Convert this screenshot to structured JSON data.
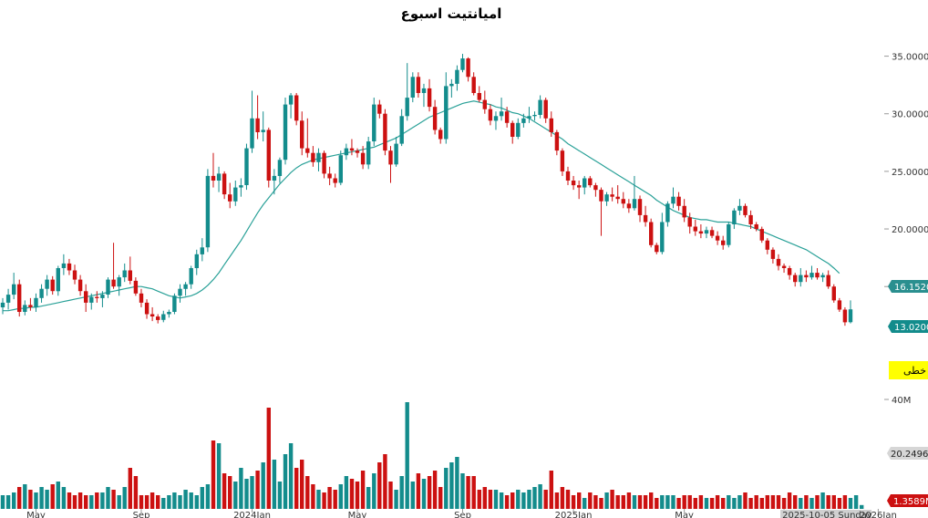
{
  "chart_data": {
    "type": "candlestick",
    "title": "امیانتیت اسبوع",
    "colors": {
      "up": "#138c8c",
      "down": "#cc1111",
      "ma": "#2aa198"
    },
    "price_axis": {
      "ylim": [
        9.0,
        37.5
      ],
      "ticks": [
        "15.0000",
        "20.0000",
        "25.0000",
        "30.0000",
        "35.0000"
      ]
    },
    "volume_axis": {
      "ylim": [
        0,
        46
      ],
      "ticks": [
        "40M"
      ]
    },
    "x_labels": [
      "May",
      "Sep",
      "2024Jan",
      "May",
      "Sep",
      "2025Jan",
      "May",
      "2025-10-05 Sunday",
      "2026Jan"
    ],
    "last_ma_label": "16.1520",
    "last_price_label": "13.0200",
    "vol_ma_label": "20.2496",
    "last_volume_label": "1.3589M",
    "indicator_label": "خطی",
    "candles": [
      [
        13.2,
        14.0,
        12.6,
        13.6
      ],
      [
        13.6,
        14.8,
        13.0,
        14.3
      ],
      [
        14.3,
        16.2,
        13.9,
        15.2
      ],
      [
        15.2,
        15.6,
        12.4,
        12.8
      ],
      [
        12.8,
        13.8,
        12.5,
        13.4
      ],
      [
        13.4,
        14.0,
        12.9,
        13.2
      ],
      [
        13.2,
        14.4,
        12.8,
        14.0
      ],
      [
        14.0,
        15.2,
        13.6,
        14.8
      ],
      [
        14.8,
        16.0,
        14.2,
        15.6
      ],
      [
        15.6,
        15.9,
        14.3,
        14.6
      ],
      [
        14.6,
        16.8,
        14.2,
        16.6
      ],
      [
        16.6,
        17.8,
        16.0,
        17.0
      ],
      [
        17.0,
        17.4,
        16.0,
        16.4
      ],
      [
        16.4,
        16.9,
        15.2,
        15.6
      ],
      [
        15.6,
        16.0,
        14.2,
        14.6
      ],
      [
        14.6,
        15.2,
        12.8,
        13.6
      ],
      [
        13.6,
        14.4,
        13.0,
        14.1
      ],
      [
        14.1,
        14.6,
        13.6,
        14.0
      ],
      [
        14.0,
        14.6,
        13.2,
        14.3
      ],
      [
        14.3,
        15.8,
        14.0,
        15.6
      ],
      [
        15.6,
        18.8,
        14.8,
        15.0
      ],
      [
        15.0,
        16.0,
        14.2,
        15.8
      ],
      [
        15.8,
        17.0,
        15.4,
        16.4
      ],
      [
        16.4,
        17.6,
        15.2,
        15.5
      ],
      [
        15.5,
        15.8,
        14.2,
        14.4
      ],
      [
        14.4,
        14.8,
        13.2,
        13.6
      ],
      [
        13.6,
        13.9,
        12.2,
        12.6
      ],
      [
        12.6,
        13.2,
        12.0,
        12.4
      ],
      [
        12.4,
        12.6,
        11.8,
        12.1
      ],
      [
        12.1,
        12.9,
        11.9,
        12.6
      ],
      [
        12.6,
        13.0,
        12.3,
        12.8
      ],
      [
        12.8,
        14.4,
        12.6,
        14.2
      ],
      [
        14.2,
        15.2,
        13.6,
        14.8
      ],
      [
        14.8,
        15.4,
        14.2,
        15.2
      ],
      [
        15.2,
        16.8,
        14.8,
        16.6
      ],
      [
        16.6,
        18.2,
        16.0,
        17.8
      ],
      [
        17.8,
        19.2,
        17.2,
        18.4
      ],
      [
        18.4,
        25.2,
        18.0,
        24.6
      ],
      [
        24.6,
        26.6,
        23.6,
        24.2
      ],
      [
        24.2,
        25.4,
        23.2,
        24.8
      ],
      [
        24.8,
        25.0,
        22.6,
        23.0
      ],
      [
        23.0,
        24.0,
        21.8,
        22.4
      ],
      [
        22.4,
        24.2,
        22.0,
        23.6
      ],
      [
        23.6,
        24.4,
        22.8,
        23.8
      ],
      [
        23.8,
        27.4,
        23.4,
        27.0
      ],
      [
        27.0,
        32.0,
        26.6,
        29.6
      ],
      [
        29.6,
        31.6,
        27.8,
        28.4
      ],
      [
        28.4,
        30.2,
        27.6,
        28.6
      ],
      [
        28.6,
        28.8,
        23.6,
        24.2
      ],
      [
        24.2,
        25.2,
        23.0,
        24.6
      ],
      [
        24.6,
        26.2,
        24.0,
        26.0
      ],
      [
        26.0,
        31.4,
        25.6,
        30.8
      ],
      [
        30.8,
        31.8,
        29.6,
        31.6
      ],
      [
        31.6,
        31.8,
        29.0,
        29.4
      ],
      [
        29.4,
        30.2,
        26.4,
        27.0
      ],
      [
        27.0,
        29.6,
        26.2,
        26.6
      ],
      [
        26.6,
        27.2,
        25.4,
        25.8
      ],
      [
        25.8,
        27.0,
        25.0,
        26.6
      ],
      [
        26.6,
        26.8,
        24.4,
        24.8
      ],
      [
        24.8,
        25.4,
        23.8,
        24.4
      ],
      [
        24.4,
        24.8,
        23.6,
        24.0
      ],
      [
        24.0,
        26.8,
        23.8,
        26.4
      ],
      [
        26.4,
        27.4,
        26.0,
        27.0
      ],
      [
        27.0,
        27.8,
        26.4,
        26.8
      ],
      [
        26.8,
        27.0,
        26.2,
        26.6
      ],
      [
        26.6,
        27.2,
        25.2,
        25.6
      ],
      [
        25.6,
        28.0,
        25.2,
        27.6
      ],
      [
        27.6,
        31.4,
        27.2,
        30.8
      ],
      [
        30.8,
        31.2,
        29.6,
        30.0
      ],
      [
        30.0,
        30.4,
        26.4,
        26.8
      ],
      [
        26.8,
        27.2,
        24.0,
        25.6
      ],
      [
        25.6,
        28.0,
        25.4,
        27.4
      ],
      [
        27.4,
        30.4,
        27.2,
        29.8
      ],
      [
        29.8,
        34.4,
        29.4,
        31.4
      ],
      [
        31.4,
        33.6,
        31.0,
        33.2
      ],
      [
        33.2,
        33.6,
        31.4,
        31.8
      ],
      [
        31.8,
        32.6,
        30.6,
        32.2
      ],
      [
        32.2,
        33.0,
        30.2,
        30.6
      ],
      [
        30.6,
        31.2,
        28.2,
        28.6
      ],
      [
        28.6,
        28.8,
        27.4,
        27.8
      ],
      [
        27.8,
        33.6,
        27.4,
        32.4
      ],
      [
        32.4,
        33.0,
        31.4,
        32.6
      ],
      [
        32.6,
        34.2,
        32.0,
        33.8
      ],
      [
        33.8,
        35.2,
        33.6,
        34.8
      ],
      [
        34.8,
        34.9,
        32.8,
        33.2
      ],
      [
        33.2,
        33.6,
        31.6,
        31.8
      ],
      [
        31.8,
        32.4,
        31.0,
        31.2
      ],
      [
        31.2,
        32.0,
        30.0,
        30.4
      ],
      [
        30.4,
        30.8,
        29.0,
        29.4
      ],
      [
        29.4,
        30.2,
        28.6,
        29.8
      ],
      [
        29.8,
        31.4,
        29.4,
        30.2
      ],
      [
        30.2,
        30.6,
        28.8,
        29.2
      ],
      [
        29.2,
        29.4,
        27.4,
        28.0
      ],
      [
        28.0,
        29.6,
        27.8,
        29.2
      ],
      [
        29.2,
        30.0,
        28.8,
        29.6
      ],
      [
        29.6,
        30.6,
        29.2,
        29.8
      ],
      [
        29.8,
        30.2,
        29.4,
        29.9
      ],
      [
        29.9,
        31.6,
        29.6,
        31.2
      ],
      [
        31.2,
        31.4,
        29.2,
        29.6
      ],
      [
        29.6,
        30.2,
        28.0,
        28.4
      ],
      [
        28.4,
        28.6,
        26.4,
        26.8
      ],
      [
        26.8,
        27.0,
        24.6,
        25.0
      ],
      [
        25.0,
        25.4,
        23.8,
        24.2
      ],
      [
        24.2,
        24.6,
        23.4,
        23.8
      ],
      [
        23.8,
        24.2,
        22.6,
        23.6
      ],
      [
        23.6,
        24.6,
        23.0,
        24.4
      ],
      [
        24.4,
        24.6,
        23.6,
        23.8
      ],
      [
        23.8,
        24.0,
        22.8,
        23.4
      ],
      [
        23.4,
        23.6,
        19.4,
        22.4
      ],
      [
        22.4,
        23.2,
        22.0,
        23.0
      ],
      [
        23.0,
        23.6,
        22.4,
        22.8
      ],
      [
        22.8,
        23.8,
        22.2,
        22.6
      ],
      [
        22.6,
        23.2,
        21.8,
        22.2
      ],
      [
        22.2,
        22.6,
        21.4,
        21.8
      ],
      [
        21.8,
        24.6,
        21.6,
        22.6
      ],
      [
        22.6,
        22.9,
        20.6,
        21.2
      ],
      [
        21.2,
        22.0,
        20.2,
        20.6
      ],
      [
        20.6,
        20.9,
        18.4,
        18.6
      ],
      [
        18.6,
        18.8,
        17.8,
        18.0
      ],
      [
        18.0,
        21.4,
        17.8,
        20.6
      ],
      [
        20.6,
        22.4,
        20.2,
        22.2
      ],
      [
        22.2,
        23.6,
        21.8,
        22.8
      ],
      [
        22.8,
        23.2,
        21.6,
        22.0
      ],
      [
        22.0,
        22.6,
        20.6,
        21.0
      ],
      [
        21.0,
        21.4,
        19.6,
        20.2
      ],
      [
        20.2,
        20.8,
        19.4,
        19.8
      ],
      [
        19.8,
        20.4,
        19.2,
        19.6
      ],
      [
        19.6,
        20.2,
        19.2,
        19.9
      ],
      [
        19.9,
        20.2,
        19.2,
        19.4
      ],
      [
        19.4,
        19.8,
        18.6,
        19.0
      ],
      [
        19.0,
        19.4,
        18.2,
        18.6
      ],
      [
        18.6,
        20.6,
        18.4,
        20.4
      ],
      [
        20.4,
        21.8,
        20.0,
        21.6
      ],
      [
        21.6,
        22.6,
        21.2,
        22.0
      ],
      [
        22.0,
        22.2,
        21.0,
        21.2
      ],
      [
        21.2,
        21.6,
        20.0,
        20.4
      ],
      [
        20.4,
        20.6,
        19.8,
        20.0
      ],
      [
        20.0,
        20.2,
        18.8,
        19.0
      ],
      [
        19.0,
        19.2,
        17.8,
        18.2
      ],
      [
        18.2,
        18.4,
        17.0,
        17.4
      ],
      [
        17.4,
        17.8,
        16.4,
        16.8
      ],
      [
        16.8,
        17.0,
        16.2,
        16.6
      ],
      [
        16.6,
        16.8,
        15.6,
        16.0
      ],
      [
        16.0,
        16.2,
        15.0,
        15.4
      ],
      [
        15.4,
        16.6,
        15.0,
        16.0
      ],
      [
        16.0,
        16.4,
        15.4,
        15.8
      ],
      [
        15.8,
        16.8,
        15.6,
        16.2
      ],
      [
        16.2,
        16.6,
        15.6,
        15.8
      ],
      [
        15.8,
        16.2,
        15.4,
        16.0
      ],
      [
        16.0,
        16.4,
        14.8,
        15.0
      ],
      [
        15.0,
        15.2,
        13.6,
        13.8
      ],
      [
        13.8,
        14.0,
        12.8,
        13.0
      ],
      [
        13.0,
        13.2,
        11.6,
        11.9
      ],
      [
        11.9,
        13.8,
        11.8,
        13.02
      ]
    ],
    "ma": [
      12.9,
      12.9,
      13.0,
      13.1,
      13.1,
      13.2,
      13.2,
      13.3,
      13.4,
      13.5,
      13.6,
      13.7,
      13.8,
      13.9,
      14.0,
      14.1,
      14.2,
      14.3,
      14.4,
      14.5,
      14.6,
      14.7,
      14.8,
      14.9,
      15.0,
      15.0,
      14.9,
      14.8,
      14.6,
      14.4,
      14.2,
      14.1,
      14.0,
      14.1,
      14.2,
      14.4,
      14.7,
      15.1,
      15.6,
      16.2,
      16.9,
      17.6,
      18.3,
      19.0,
      19.8,
      20.6,
      21.4,
      22.1,
      22.7,
      23.3,
      23.9,
      24.4,
      24.9,
      25.3,
      25.6,
      25.8,
      26.0,
      26.1,
      26.2,
      26.3,
      26.4,
      26.5,
      26.6,
      26.7,
      26.8,
      26.9,
      27.0,
      27.1,
      27.3,
      27.5,
      27.7,
      27.9,
      28.2,
      28.5,
      28.8,
      29.1,
      29.4,
      29.7,
      29.9,
      30.1,
      30.3,
      30.5,
      30.7,
      30.9,
      31.0,
      31.1,
      31.0,
      30.9,
      30.8,
      30.6,
      30.5,
      30.3,
      30.1,
      30.0,
      29.8,
      29.6,
      29.3,
      29.0,
      28.7,
      28.4,
      28.1,
      27.8,
      27.4,
      27.1,
      26.8,
      26.5,
      26.2,
      25.9,
      25.6,
      25.3,
      25.0,
      24.7,
      24.4,
      24.1,
      23.8,
      23.5,
      23.2,
      22.9,
      22.5,
      22.2,
      21.9,
      21.6,
      21.4,
      21.2,
      21.0,
      20.9,
      20.8,
      20.8,
      20.7,
      20.6,
      20.6,
      20.6,
      20.5,
      20.4,
      20.3,
      20.2,
      20.0,
      19.8,
      19.6,
      19.4,
      19.2,
      19.0,
      18.8,
      18.6,
      18.4,
      18.2,
      17.9,
      17.6,
      17.3,
      17.0,
      16.6,
      16.15
    ],
    "volume": [
      5,
      5,
      6,
      8,
      9,
      7,
      6,
      8,
      7,
      9,
      10,
      8,
      6,
      5,
      6,
      5,
      5,
      6,
      6,
      8,
      7,
      5,
      8,
      15,
      12,
      5,
      5,
      6,
      5,
      4,
      5,
      6,
      5,
      7,
      6,
      5,
      8,
      9,
      25,
      24,
      13,
      12,
      10,
      15,
      11,
      12,
      14,
      17,
      37,
      18,
      10,
      20,
      24,
      15,
      18,
      12,
      9,
      7,
      6,
      8,
      7,
      9,
      12,
      11,
      10,
      14,
      8,
      13,
      17,
      20,
      10,
      7,
      12,
      39,
      10,
      13,
      11,
      12,
      14,
      8,
      15,
      17,
      19,
      13,
      12,
      12,
      7,
      8,
      7,
      7,
      6,
      5,
      6,
      7,
      6,
      7,
      8,
      9,
      7,
      14,
      6,
      8,
      7,
      5,
      6,
      4,
      6,
      5,
      4,
      6,
      7,
      5,
      5,
      6,
      5,
      5,
      5,
      6,
      4,
      5,
      5,
      5,
      4,
      5,
      5,
      4,
      5,
      4,
      4,
      5,
      4,
      5,
      4,
      5,
      6,
      4,
      5,
      4,
      5,
      5,
      5,
      4,
      6,
      5,
      4,
      5,
      4,
      5,
      6,
      5,
      5,
      4,
      5,
      4,
      5,
      1.4
    ]
  }
}
